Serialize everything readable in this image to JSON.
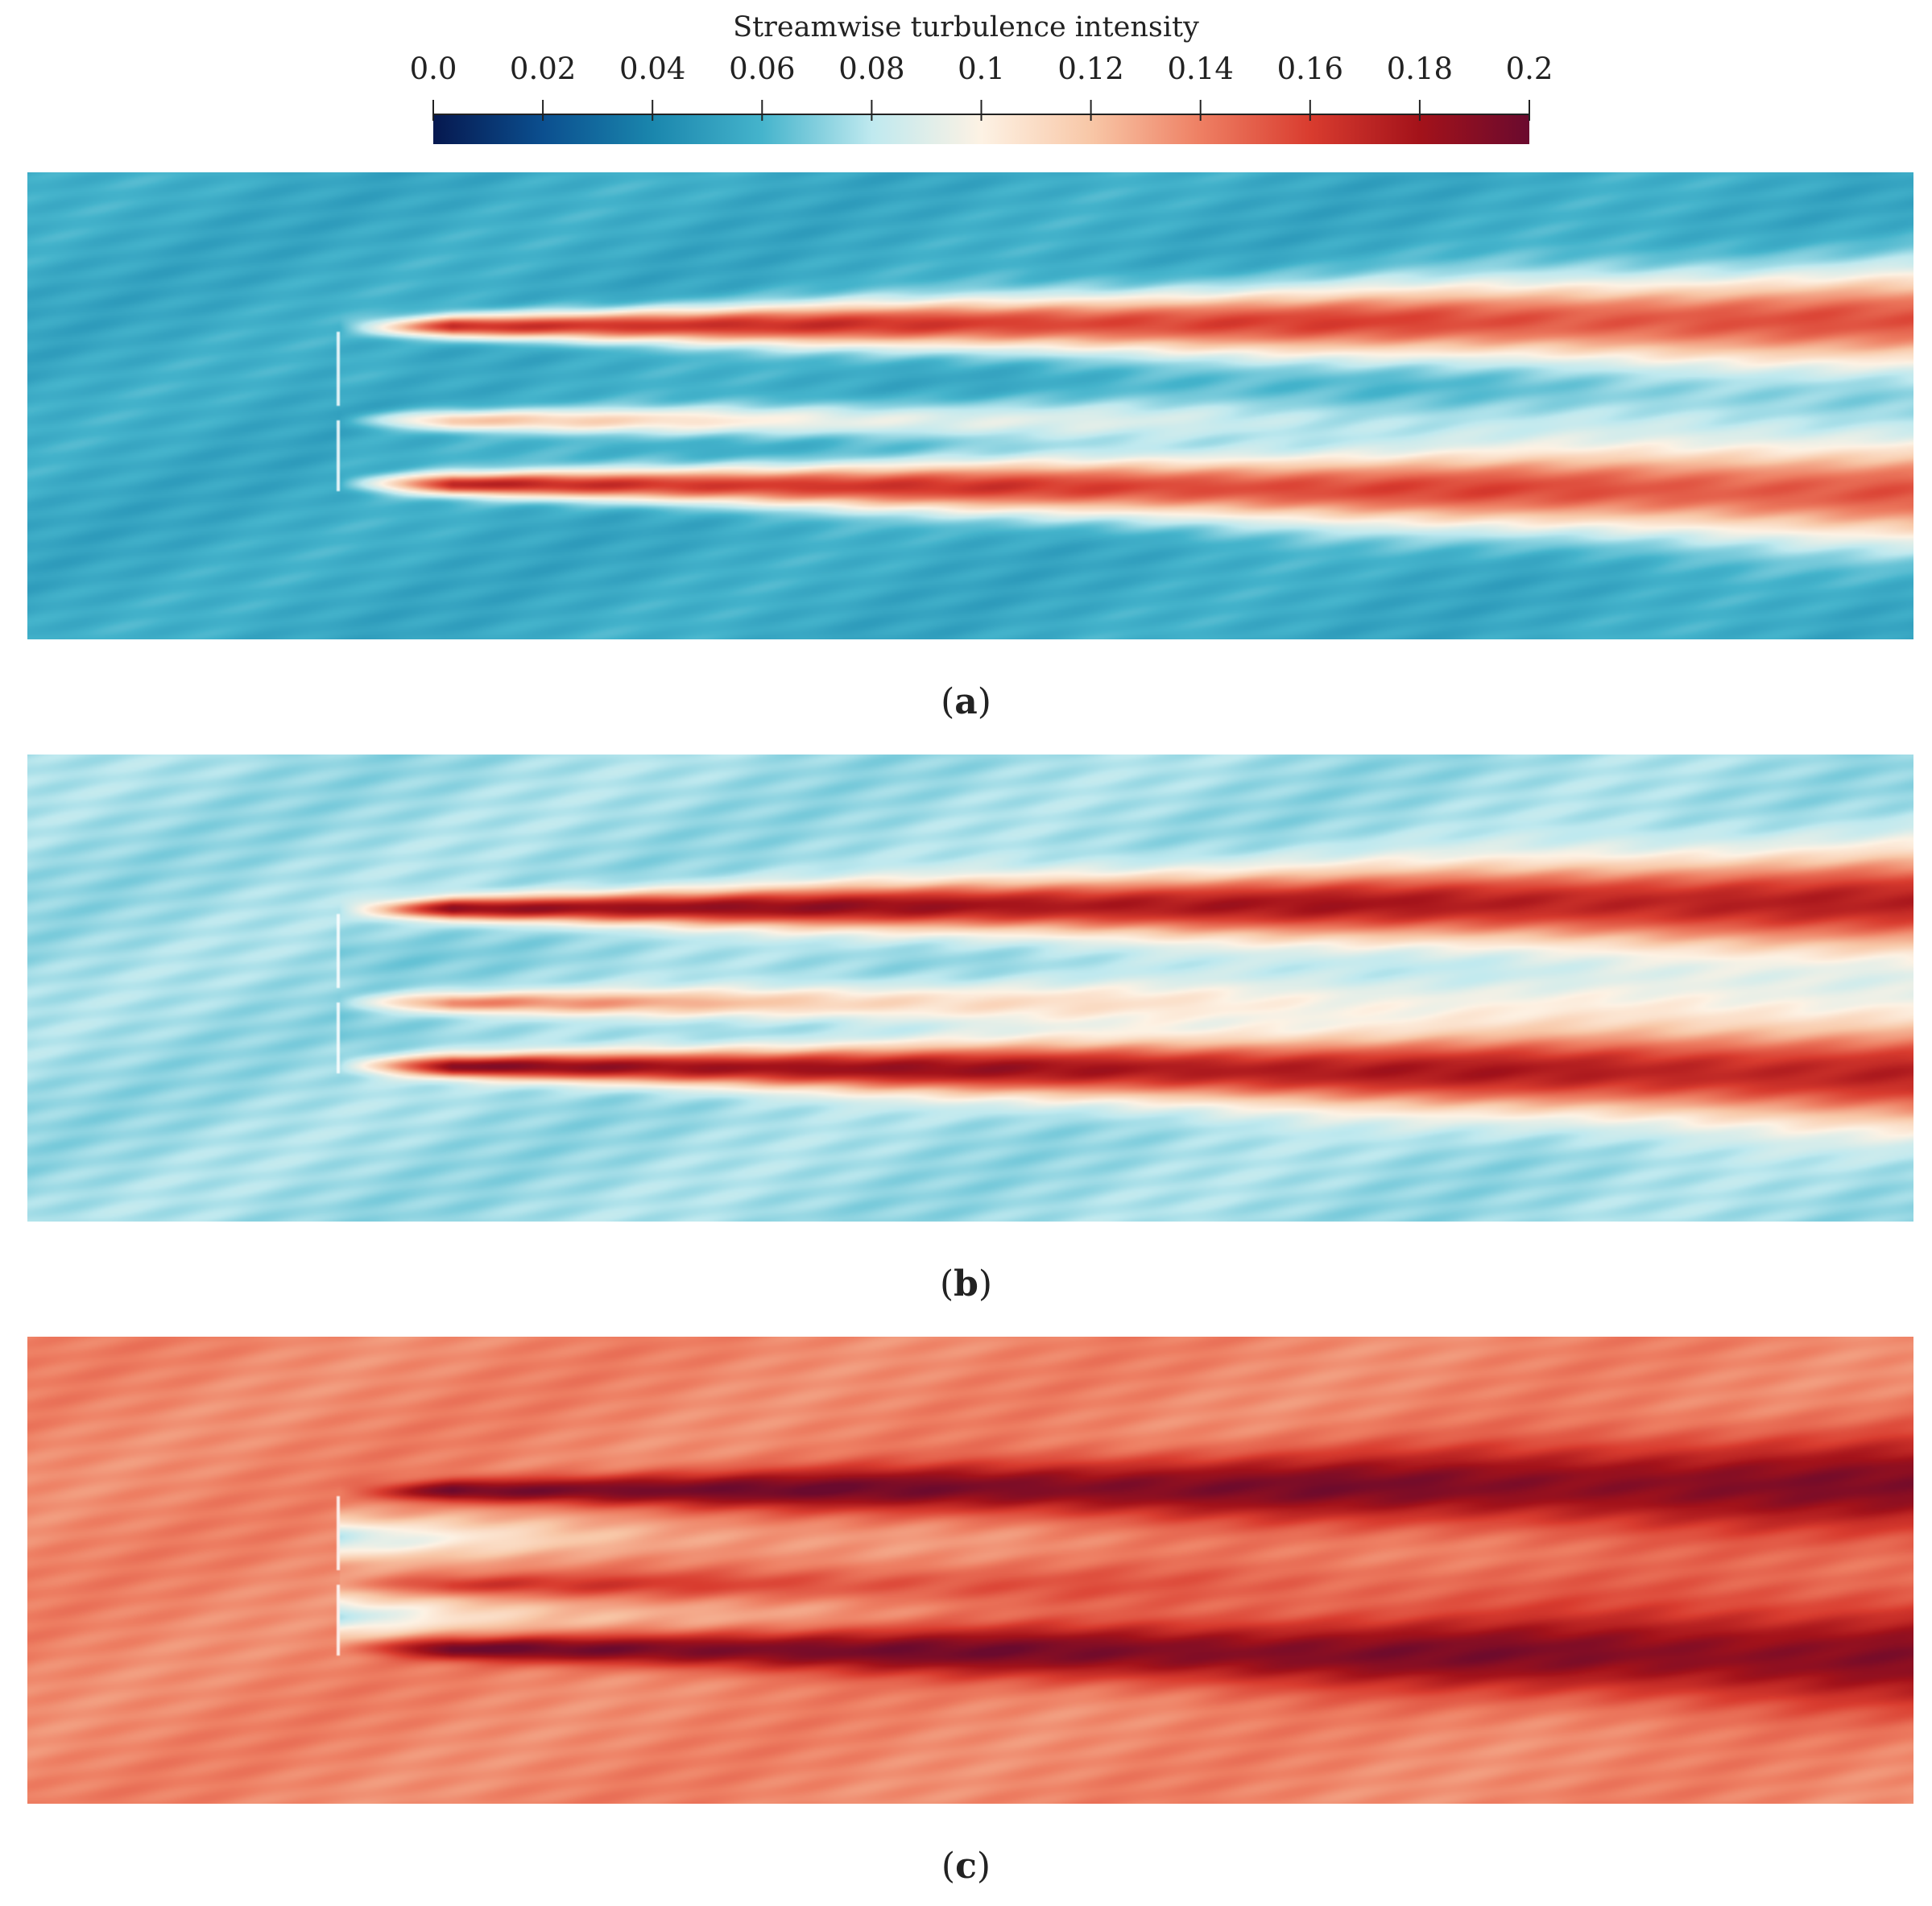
{
  "chart_data": {
    "type": "heatmap",
    "title": "Streamwise turbulence intensity",
    "colorbar": {
      "label": "Streamwise turbulence intensity",
      "range": [
        0.0,
        0.2
      ],
      "ticks": [
        "0.0",
        "0.02",
        "0.04",
        "0.06",
        "0.08",
        "0.1",
        "0.12",
        "0.14",
        "0.16",
        "0.18",
        "0.2"
      ],
      "colormap": [
        "#06184f",
        "#0b4f8f",
        "#1a86ad",
        "#45b4cc",
        "#bfe9ef",
        "#fdf2e4",
        "#f8c7a7",
        "#ee7f63",
        "#d93c2f",
        "#a3121a",
        "#6a0a2e"
      ]
    },
    "panels": [
      {
        "label": "a",
        "background_level": 0.056,
        "wake_peak_level": 0.17,
        "inner_wake_level": 0.13,
        "core_level": 0.06
      },
      {
        "label": "b",
        "background_level": 0.075,
        "wake_peak_level": 0.19,
        "inner_wake_level": 0.15,
        "core_level": 0.07
      },
      {
        "label": "c",
        "background_level": 0.138,
        "wake_peak_level": 0.2,
        "inner_wake_level": 0.17,
        "core_level": 0.08
      }
    ]
  }
}
